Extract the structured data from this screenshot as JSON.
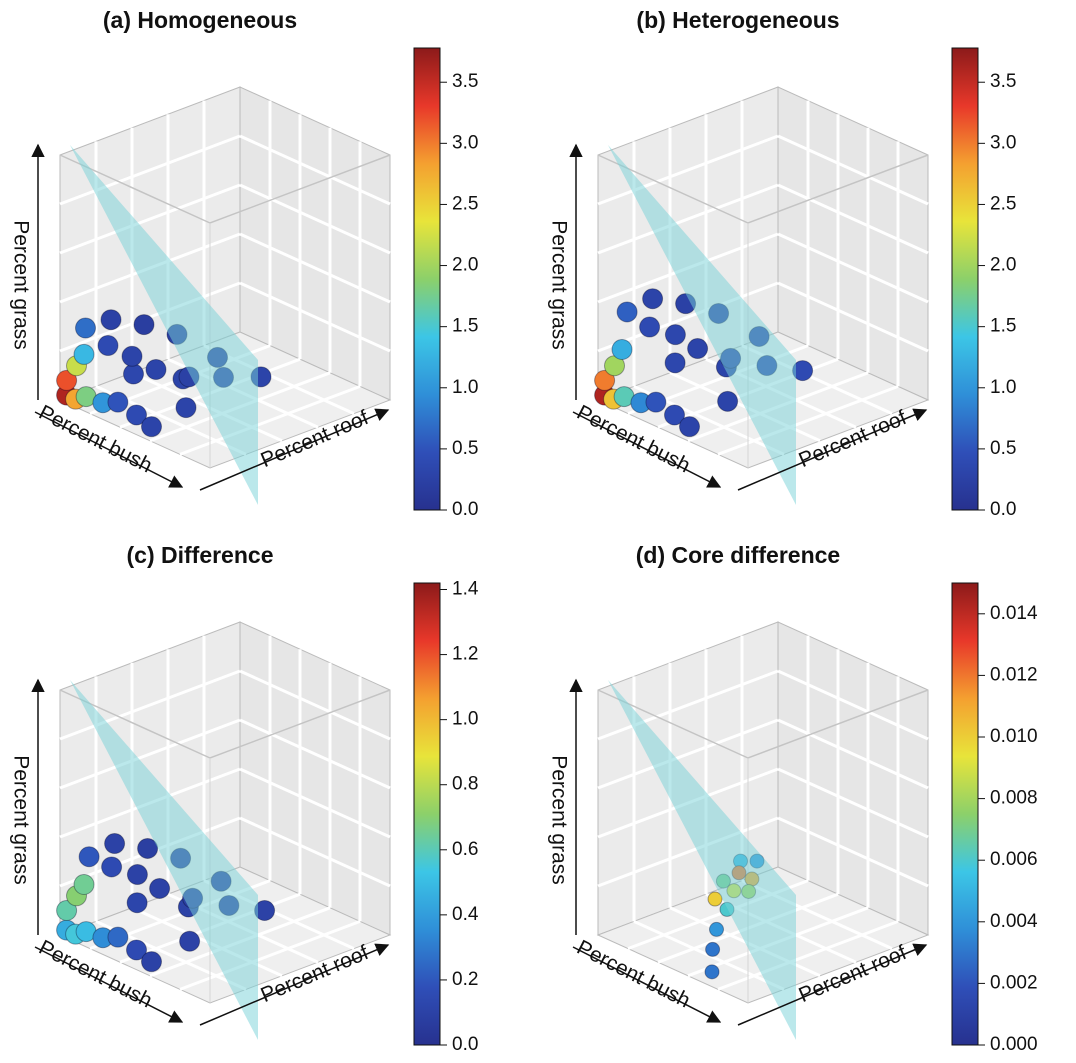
{
  "chart_data": [
    {
      "type": "scatter3d",
      "title": "(a) Homogeneous",
      "xlabel": "Percent bush",
      "ylabel": "Percent roof",
      "zlabel": "Percent grass",
      "x": [
        0.02,
        0.02,
        0.08,
        0.05,
        0.15,
        0.1,
        0.25,
        0.05,
        0.35,
        0.45,
        0.55,
        0.2,
        0.3,
        0.4,
        0.5,
        0.55,
        0.62,
        0.1,
        0.2,
        0.3,
        0.45,
        0.6,
        0.4,
        0.25
      ],
      "y": [
        0.02,
        0.02,
        0.02,
        0.05,
        0.02,
        0.05,
        0.03,
        0.1,
        0.03,
        0.05,
        0.05,
        0.1,
        0.15,
        0.2,
        0.3,
        0.45,
        0.6,
        0.2,
        0.3,
        0.4,
        0.5,
        0.2,
        0.35,
        0.2
      ],
      "z": [
        0.02,
        0.08,
        0.02,
        0.14,
        0.05,
        0.2,
        0.05,
        0.28,
        0.08,
        0.05,
        0.03,
        0.25,
        0.22,
        0.18,
        0.15,
        0.12,
        0.1,
        0.3,
        0.28,
        0.24,
        0.16,
        0.08,
        0.1,
        0.12
      ],
      "values": [
        3.6,
        3.2,
        2.8,
        2.2,
        1.8,
        1.3,
        1.0,
        0.7,
        0.5,
        0.4,
        0.3,
        0.4,
        0.3,
        0.3,
        0.25,
        0.25,
        0.3,
        0.25,
        0.2,
        0.2,
        0.2,
        0.3,
        0.3,
        0.35
      ],
      "clim": [
        0,
        3.78
      ],
      "cticks": [
        {
          "value": 0,
          "label": "0.0"
        },
        0.5,
        {
          "value": 1,
          "label": "1.0"
        },
        1.5,
        {
          "value": 2,
          "label": "2.0"
        },
        2.5,
        {
          "value": 3,
          "label": "3.0"
        },
        3.5
      ],
      "colormap": [
        "#27318f",
        "#2f4fb8",
        "#2f8fd8",
        "#3cc6e6",
        "#8cd06a",
        "#e8e43a",
        "#f4a030",
        "#e8382a",
        "#8c1a1a"
      ]
    },
    {
      "type": "scatter3d",
      "title": "(b) Heterogeneous",
      "xlabel": "Percent bush",
      "ylabel": "Percent roof",
      "zlabel": "Percent grass",
      "x": [
        0.02,
        0.02,
        0.08,
        0.05,
        0.15,
        0.1,
        0.25,
        0.05,
        0.35,
        0.45,
        0.55,
        0.2,
        0.3,
        0.4,
        0.5,
        0.55,
        0.62,
        0.1,
        0.2,
        0.3,
        0.45,
        0.6,
        0.4,
        0.25
      ],
      "y": [
        0.02,
        0.02,
        0.02,
        0.05,
        0.02,
        0.05,
        0.03,
        0.12,
        0.03,
        0.05,
        0.05,
        0.12,
        0.18,
        0.22,
        0.32,
        0.48,
        0.62,
        0.22,
        0.32,
        0.42,
        0.52,
        0.22,
        0.38,
        0.22
      ],
      "z": [
        0.02,
        0.08,
        0.02,
        0.14,
        0.05,
        0.22,
        0.05,
        0.34,
        0.08,
        0.05,
        0.03,
        0.32,
        0.3,
        0.26,
        0.22,
        0.16,
        0.12,
        0.38,
        0.36,
        0.32,
        0.24,
        0.1,
        0.14,
        0.16
      ],
      "values": [
        3.6,
        3.0,
        2.6,
        2.0,
        1.6,
        1.2,
        0.9,
        0.6,
        0.5,
        0.4,
        0.3,
        0.4,
        0.35,
        0.3,
        0.3,
        0.35,
        0.4,
        0.3,
        0.25,
        0.25,
        0.3,
        0.3,
        0.3,
        0.35
      ],
      "clim": [
        0,
        3.78
      ],
      "cticks": [
        {
          "value": 0,
          "label": "0.0"
        },
        0.5,
        {
          "value": 1,
          "label": "1.0"
        },
        1.5,
        {
          "value": 2,
          "label": "2.0"
        },
        2.5,
        {
          "value": 3,
          "label": "3.0"
        },
        3.5
      ],
      "colormap": [
        "#27318f",
        "#2f4fb8",
        "#2f8fd8",
        "#3cc6e6",
        "#8cd06a",
        "#e8e43a",
        "#f4a030",
        "#e8382a",
        "#8c1a1a"
      ]
    },
    {
      "type": "scatter3d",
      "title": "(c) Difference",
      "xlabel": "Percent bush",
      "ylabel": "Percent roof",
      "zlabel": "Percent grass",
      "x": [
        0.02,
        0.02,
        0.08,
        0.05,
        0.15,
        0.1,
        0.25,
        0.05,
        0.35,
        0.45,
        0.55,
        0.2,
        0.3,
        0.4,
        0.5,
        0.55,
        0.62,
        0.1,
        0.2,
        0.3,
        0.45,
        0.6,
        0.4,
        0.25
      ],
      "y": [
        0.02,
        0.02,
        0.02,
        0.05,
        0.02,
        0.05,
        0.03,
        0.12,
        0.03,
        0.05,
        0.05,
        0.12,
        0.18,
        0.22,
        0.32,
        0.48,
        0.62,
        0.22,
        0.32,
        0.42,
        0.52,
        0.22,
        0.38,
        0.22
      ],
      "z": [
        0.02,
        0.1,
        0.02,
        0.16,
        0.05,
        0.22,
        0.05,
        0.3,
        0.08,
        0.05,
        0.03,
        0.3,
        0.28,
        0.24,
        0.2,
        0.14,
        0.1,
        0.34,
        0.32,
        0.28,
        0.2,
        0.08,
        0.12,
        0.14
      ],
      "values": [
        0.45,
        0.62,
        0.55,
        0.7,
        0.5,
        0.65,
        0.35,
        0.2,
        0.25,
        0.15,
        0.1,
        0.15,
        0.1,
        0.1,
        0.08,
        0.08,
        0.1,
        0.1,
        0.08,
        0.08,
        0.08,
        0.1,
        0.1,
        0.12
      ],
      "clim": [
        0,
        1.42
      ],
      "cticks": [
        {
          "value": 0,
          "label": "0.0"
        },
        0.2,
        0.4,
        0.6,
        0.8,
        {
          "value": 1,
          "label": "1.0"
        },
        1.2,
        1.4
      ],
      "colormap": [
        "#27318f",
        "#2f4fb8",
        "#2f8fd8",
        "#3cc6e6",
        "#8cd06a",
        "#e8e43a",
        "#f4a030",
        "#e8382a",
        "#8c1a1a"
      ]
    },
    {
      "type": "scatter3d",
      "title": "(d) Core difference",
      "xlabel": "Percent bush",
      "ylabel": "Percent roof",
      "zlabel": "Percent grass",
      "x": [
        0.7,
        0.62,
        0.55,
        0.5,
        0.45,
        0.4,
        0.42,
        0.38,
        0.35,
        0.45,
        0.5,
        0.4
      ],
      "y": [
        0.05,
        0.12,
        0.2,
        0.3,
        0.38,
        0.45,
        0.3,
        0.38,
        0.5,
        0.48,
        0.42,
        0.55
      ],
      "z": [
        0.03,
        0.08,
        0.12,
        0.16,
        0.2,
        0.24,
        0.18,
        0.22,
        0.26,
        0.22,
        0.2,
        0.26
      ],
      "values": [
        0.003,
        0.003,
        0.004,
        0.006,
        0.009,
        0.012,
        0.01,
        0.007,
        0.005,
        0.011,
        0.008,
        0.004
      ],
      "clim": [
        0,
        0.015
      ],
      "cticks": [
        {
          "value": 0,
          "label": "0.000"
        },
        0.002,
        0.004,
        0.006,
        0.008,
        {
          "value": 0.01,
          "label": "0.010"
        },
        0.012,
        0.014
      ],
      "colormap": [
        "#27318f",
        "#2f4fb8",
        "#2f8fd8",
        "#3cc6e6",
        "#8cd06a",
        "#e8e43a",
        "#f4a030",
        "#e8382a",
        "#8c1a1a"
      ]
    }
  ]
}
